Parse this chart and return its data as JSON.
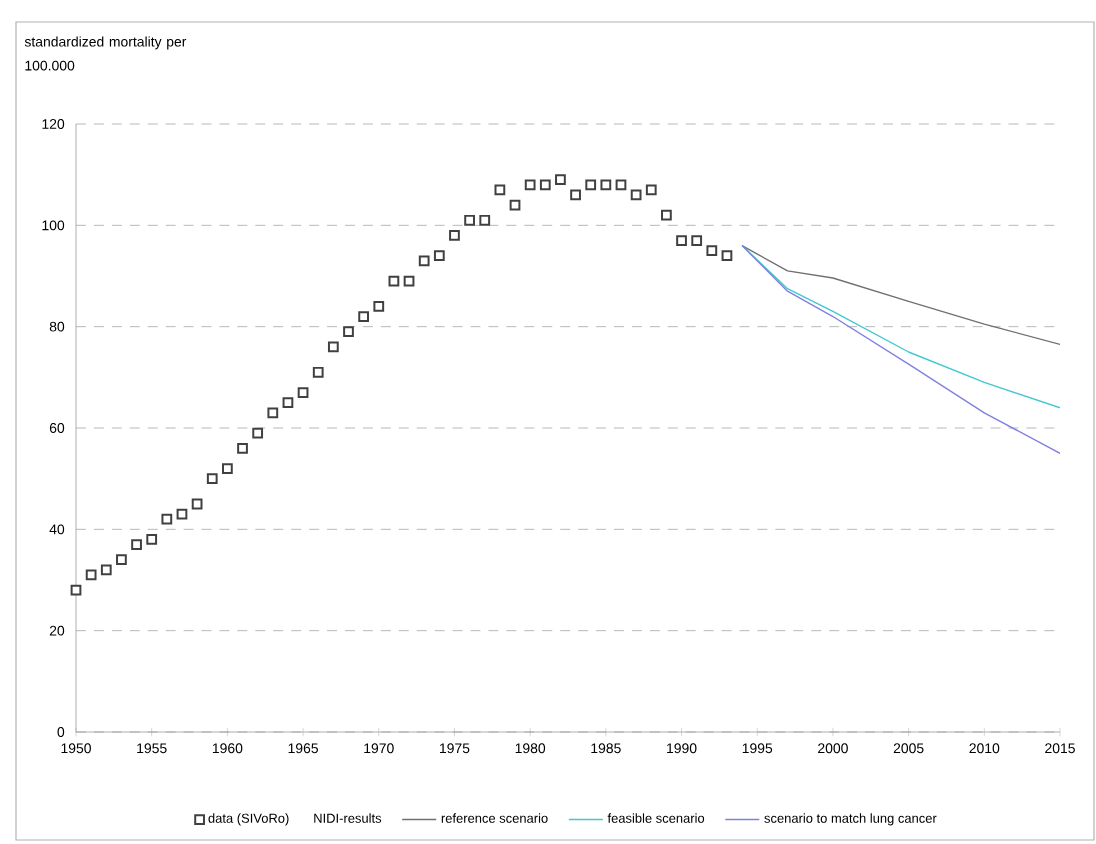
{
  "chart_data": {
    "type": "line",
    "ylabel": "standardized mortality per 100.000",
    "legend_title": "NIDI-results",
    "xlim": [
      1950,
      2015
    ],
    "xticks": [
      1950,
      1955,
      1960,
      1965,
      1970,
      1975,
      1980,
      1985,
      1990,
      1995,
      2000,
      2005,
      2010,
      2015
    ],
    "ylim": [
      0,
      120
    ],
    "yticks": [
      0,
      20,
      40,
      60,
      80,
      100,
      120
    ],
    "grid": "y",
    "legend": "bottom",
    "series": [
      {
        "name": "data (SIVoRo)",
        "type": "scatter",
        "marker": "square",
        "color": "#404040",
        "x": [
          1950,
          1951,
          1952,
          1953,
          1954,
          1955,
          1956,
          1957,
          1958,
          1959,
          1960,
          1961,
          1962,
          1963,
          1964,
          1965,
          1966,
          1967,
          1968,
          1969,
          1970,
          1971,
          1972,
          1973,
          1974,
          1975,
          1976,
          1977,
          1978,
          1979,
          1980,
          1981,
          1982,
          1983,
          1984,
          1985,
          1986,
          1987,
          1988,
          1989,
          1990,
          1991,
          1992,
          1993
        ],
        "values": [
          28,
          31,
          32,
          34,
          37,
          38,
          42,
          43,
          45,
          50,
          52,
          56,
          59,
          63,
          65,
          67,
          71,
          76,
          79,
          82,
          84,
          89,
          89,
          93,
          94,
          98,
          101,
          101,
          107,
          104,
          108,
          108,
          109,
          106,
          108,
          108,
          108,
          106,
          107,
          102,
          97,
          97,
          95,
          94
        ]
      },
      {
        "name": "reference scenario",
        "color": "#707070",
        "x": [
          1994,
          1997,
          2000,
          2005,
          2010,
          2015
        ],
        "values": [
          96,
          91,
          89.6,
          85,
          80.5,
          76.5
        ]
      },
      {
        "name": "feasible scenario",
        "color": "#40c8d0",
        "x": [
          1994,
          1997,
          2000,
          2005,
          2010,
          2015
        ],
        "values": [
          96,
          87.5,
          83,
          75,
          69,
          64
        ]
      },
      {
        "name": "scenario to match lung cancer",
        "color": "#8080e0",
        "x": [
          1994,
          1997,
          2000,
          2005,
          2010,
          2015
        ],
        "values": [
          96,
          87,
          82,
          72.6,
          63,
          55
        ]
      }
    ]
  }
}
